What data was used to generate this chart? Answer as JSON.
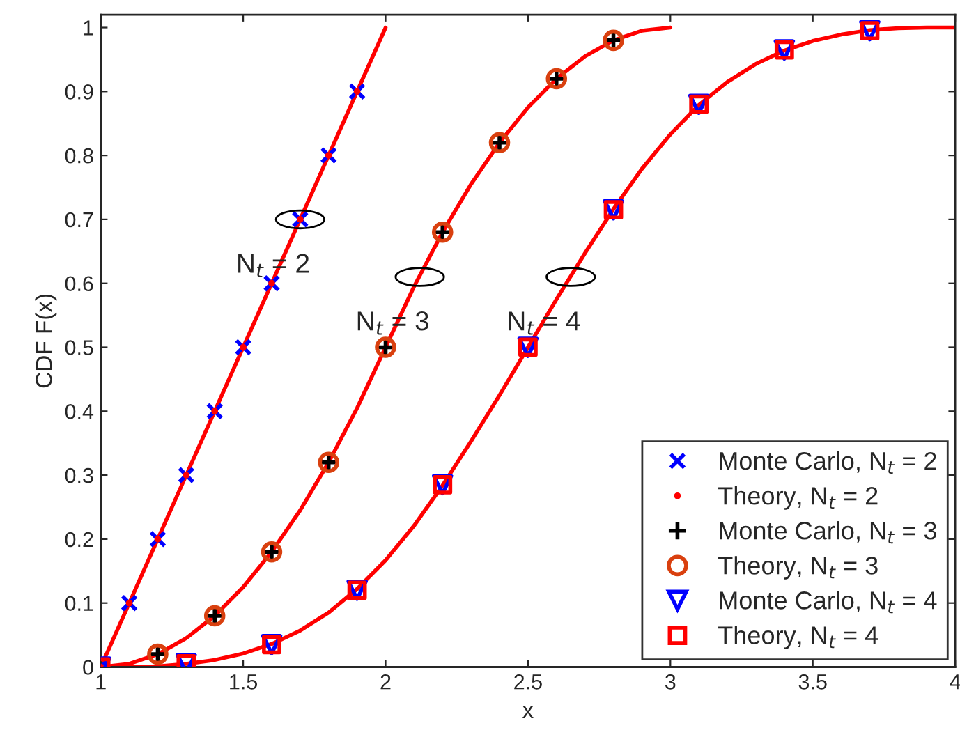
{
  "chart_data": {
    "type": "line",
    "xlabel": "x",
    "ylabel": "CDF F(x)",
    "xlim": [
      1,
      4
    ],
    "ylim": [
      0,
      1.02
    ],
    "xticks": [
      1,
      1.5,
      2,
      2.5,
      3,
      3.5,
      4
    ],
    "yticks": [
      0,
      0.1,
      0.2,
      0.3,
      0.4,
      0.5,
      0.6,
      0.7,
      0.8,
      0.9,
      1
    ],
    "grid": false,
    "legend": "bottom right",
    "annotations": [
      {
        "text": "N$_{t}$ = 2",
        "x": 1.7,
        "y": 0.7
      },
      {
        "text": "N$_{t}$ = 3",
        "x": 2.12,
        "y": 0.61
      },
      {
        "text": "N$_{t}$ = 4",
        "x": 2.65,
        "y": 0.61
      }
    ],
    "series": [
      {
        "color": "#ff0000",
        "marker": "none",
        "x": [
          1,
          2
        ],
        "values": [
          0,
          1
        ]
      },
      {
        "color": "#ff0000",
        "marker": "none",
        "x": [
          1,
          1.1,
          1.2,
          1.3,
          1.4,
          1.5,
          1.6,
          1.7,
          1.8,
          1.9,
          2,
          2.1,
          2.2,
          2.3,
          2.4,
          2.5,
          2.6,
          2.7,
          2.8,
          2.9,
          3
        ],
        "values": [
          0,
          0.005,
          0.02,
          0.045,
          0.08,
          0.125,
          0.18,
          0.245,
          0.32,
          0.405,
          0.5,
          0.595,
          0.68,
          0.755,
          0.82,
          0.875,
          0.92,
          0.955,
          0.98,
          0.995,
          1
        ]
      },
      {
        "color": "#ff0000",
        "marker": "none",
        "x": [
          1,
          1.1,
          1.2,
          1.3,
          1.4,
          1.5,
          1.6,
          1.7,
          1.8,
          1.9,
          2,
          2.1,
          2.2,
          2.3,
          2.4,
          2.5,
          2.6,
          2.7,
          2.8,
          2.9,
          3,
          3.1,
          3.2,
          3.3,
          3.4,
          3.5,
          3.6,
          3.7,
          3.8,
          3.9,
          4
        ],
        "values": [
          0,
          0,
          0.001,
          0.005,
          0.011,
          0.021,
          0.036,
          0.057,
          0.085,
          0.122,
          0.167,
          0.221,
          0.284,
          0.353,
          0.425,
          0.5,
          0.575,
          0.647,
          0.716,
          0.779,
          0.833,
          0.879,
          0.915,
          0.943,
          0.964,
          0.979,
          0.989,
          0.996,
          0.999,
          1,
          1
        ]
      },
      {
        "type": "scatter",
        "name": "Monte Carlo, N$_{t}$ = 2",
        "color": "#0000ff",
        "marker": "x",
        "x": [
          1,
          1.1,
          1.2,
          1.3,
          1.4,
          1.5,
          1.6,
          1.7,
          1.8,
          1.9
        ],
        "values": [
          0,
          0.1,
          0.2,
          0.3,
          0.4,
          0.5,
          0.6,
          0.7,
          0.8,
          0.9
        ]
      },
      {
        "type": "scatter",
        "name": "Theory, N$_{t}$ = 2",
        "color": "#ff0000",
        "marker": "point",
        "x": [
          1,
          1.1,
          1.2,
          1.3,
          1.4,
          1.5,
          1.6,
          1.7,
          1.8,
          1.9
        ],
        "values": [
          0,
          0.1,
          0.2,
          0.3,
          0.4,
          0.5,
          0.6,
          0.7,
          0.8,
          0.9
        ]
      },
      {
        "type": "scatter",
        "name": "Monte Carlo, N$_{t}$ = 3",
        "color": "#000000",
        "marker": "plus",
        "x": [
          1.2,
          1.4,
          1.6,
          1.8,
          2,
          2.2,
          2.4,
          2.6,
          2.8
        ],
        "values": [
          0.02,
          0.08,
          0.18,
          0.32,
          0.5,
          0.68,
          0.82,
          0.92,
          0.98
        ]
      },
      {
        "type": "scatter",
        "name": "Theory, N$_{t}$ = 3",
        "color": "#d9400f",
        "marker": "circle",
        "x": [
          1.2,
          1.4,
          1.6,
          1.8,
          2,
          2.2,
          2.4,
          2.6,
          2.8
        ],
        "values": [
          0.02,
          0.08,
          0.18,
          0.32,
          0.5,
          0.68,
          0.82,
          0.92,
          0.98
        ]
      },
      {
        "type": "scatter",
        "name": "Monte Carlo, N$_{t}$ = 4",
        "color": "#0000ff",
        "marker": "triangle_down",
        "x": [
          1,
          1.3,
          1.6,
          1.9,
          2.2,
          2.5,
          2.8,
          3.1,
          3.4,
          3.7
        ],
        "values": [
          0,
          0.005,
          0.035,
          0.12,
          0.285,
          0.5,
          0.715,
          0.88,
          0.965,
          0.995
        ]
      },
      {
        "type": "scatter",
        "name": "Theory, N$_{t}$ = 4",
        "color": "#ff0000",
        "marker": "square",
        "x": [
          1,
          1.3,
          1.6,
          1.9,
          2.2,
          2.5,
          2.8,
          3.1,
          3.4,
          3.7
        ],
        "values": [
          0,
          0.005,
          0.035,
          0.12,
          0.285,
          0.5,
          0.715,
          0.88,
          0.965,
          0.995
        ]
      }
    ]
  }
}
